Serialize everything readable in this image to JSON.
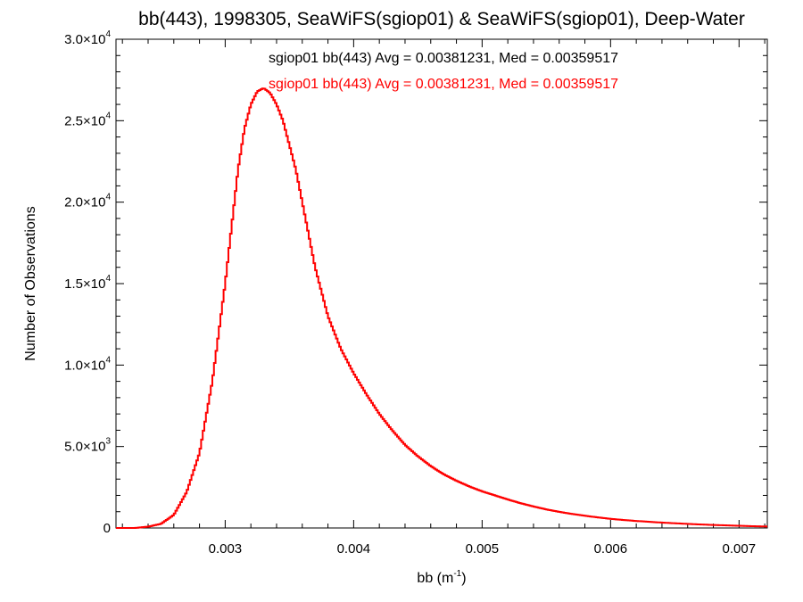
{
  "chart_data": {
    "type": "line",
    "title": "bb(443), 1998305, SeaWiFS(sgiop01) & SeaWiFS(sgiop01), Deep-Water",
    "xlabel": {
      "base": "bb (m",
      "sup": "-1",
      "tail": ")"
    },
    "ylabel": "Number of Observations",
    "xlim": [
      0.00215,
      0.00722
    ],
    "ylim": [
      0,
      30000
    ],
    "grid": false,
    "x_ticks": [
      {
        "value": 0.003,
        "label": "0.003"
      },
      {
        "value": 0.004,
        "label": "0.004"
      },
      {
        "value": 0.005,
        "label": "0.005"
      },
      {
        "value": 0.006,
        "label": "0.006"
      },
      {
        "value": 0.007,
        "label": "0.007"
      }
    ],
    "y_ticks": [
      {
        "value": 0,
        "mant": "0",
        "exp": ""
      },
      {
        "value": 5000,
        "mant": "5.0×10",
        "exp": "3"
      },
      {
        "value": 10000,
        "mant": "1.0×10",
        "exp": "4"
      },
      {
        "value": 15000,
        "mant": "1.5×10",
        "exp": "4"
      },
      {
        "value": 20000,
        "mant": "2.0×10",
        "exp": "4"
      },
      {
        "value": 25000,
        "mant": "2.5×10",
        "exp": "4"
      },
      {
        "value": 30000,
        "mant": "3.0×10",
        "exp": "4"
      }
    ],
    "annotations": [
      {
        "text": "sgiop01 bb(443) Avg = 0.00381231, Med = 0.00359517",
        "color": "#000000"
      },
      {
        "text": "sgiop01 bb(443) Avg = 0.00381231, Med = 0.00359517",
        "color": "#ff0000"
      }
    ],
    "series": [
      {
        "color": "#ff0000",
        "style": "step",
        "points": [
          [
            0.00215,
            0
          ],
          [
            0.0023,
            0
          ],
          [
            0.0024,
            80
          ],
          [
            0.0025,
            250
          ],
          [
            0.0026,
            800
          ],
          [
            0.0027,
            2200
          ],
          [
            0.0028,
            4600
          ],
          [
            0.0029,
            9000
          ],
          [
            0.003,
            15000
          ],
          [
            0.00305,
            18500
          ],
          [
            0.0031,
            22000
          ],
          [
            0.00315,
            24500
          ],
          [
            0.0032,
            26000
          ],
          [
            0.00325,
            26800
          ],
          [
            0.0033,
            27000
          ],
          [
            0.00335,
            26700
          ],
          [
            0.0034,
            26000
          ],
          [
            0.00345,
            25000
          ],
          [
            0.0035,
            23500
          ],
          [
            0.00355,
            22000
          ],
          [
            0.0036,
            20000
          ],
          [
            0.00365,
            18000
          ],
          [
            0.0037,
            16000
          ],
          [
            0.00375,
            14500
          ],
          [
            0.0038,
            13000
          ],
          [
            0.0039,
            11000
          ],
          [
            0.004,
            9500
          ],
          [
            0.0041,
            8200
          ],
          [
            0.0042,
            7000
          ],
          [
            0.0043,
            6000
          ],
          [
            0.0044,
            5100
          ],
          [
            0.0045,
            4400
          ],
          [
            0.0046,
            3800
          ],
          [
            0.0047,
            3300
          ],
          [
            0.0048,
            2900
          ],
          [
            0.0049,
            2550
          ],
          [
            0.005,
            2250
          ],
          [
            0.0051,
            2000
          ],
          [
            0.0052,
            1750
          ],
          [
            0.0053,
            1520
          ],
          [
            0.0054,
            1320
          ],
          [
            0.0055,
            1140
          ],
          [
            0.0056,
            990
          ],
          [
            0.0057,
            860
          ],
          [
            0.0058,
            750
          ],
          [
            0.0059,
            650
          ],
          [
            0.006,
            560
          ],
          [
            0.0061,
            490
          ],
          [
            0.0062,
            430
          ],
          [
            0.0063,
            380
          ],
          [
            0.0064,
            330
          ],
          [
            0.0065,
            290
          ],
          [
            0.0066,
            250
          ],
          [
            0.0067,
            215
          ],
          [
            0.0068,
            185
          ],
          [
            0.0069,
            160
          ],
          [
            0.007,
            135
          ],
          [
            0.0071,
            110
          ],
          [
            0.00722,
            90
          ]
        ]
      }
    ]
  }
}
